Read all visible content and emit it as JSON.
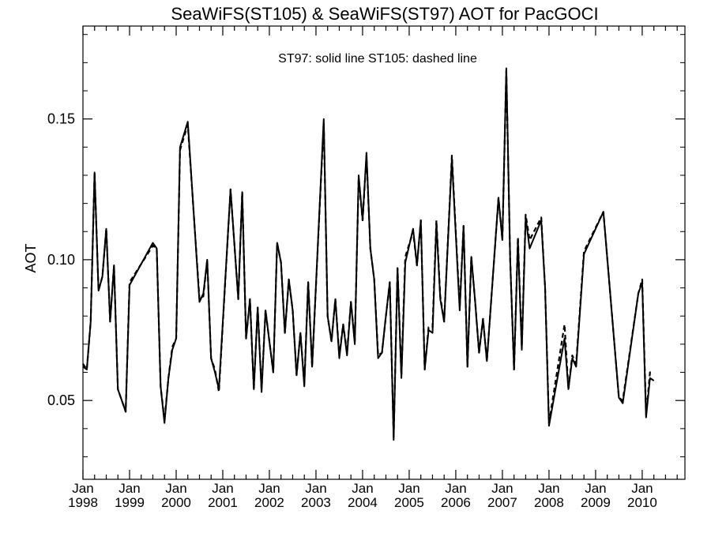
{
  "chart_data": {
    "type": "line",
    "title": "SeaWiFS(ST105) & SeaWiFS(ST97)  AOT for PacGOCI",
    "annotation": "ST97: solid line   ST105: dashed line",
    "xlabel": "",
    "ylabel": "AOT",
    "xlim": [
      "1998-01",
      "2010-12"
    ],
    "ylim": [
      0.022,
      0.183
    ],
    "yticks": [
      0.05,
      0.1,
      0.15
    ],
    "ytick_labels": [
      "0.05",
      "0.10",
      "0.15"
    ],
    "xticks": [
      {
        "month": "1998-01",
        "line1": "Jan",
        "line2": "1998"
      },
      {
        "month": "1999-01",
        "line1": "Jan",
        "line2": "1999"
      },
      {
        "month": "2000-01",
        "line1": "Jan",
        "line2": "2000"
      },
      {
        "month": "2001-01",
        "line1": "Jan",
        "line2": "2001"
      },
      {
        "month": "2002-01",
        "line1": "Jan",
        "line2": "2002"
      },
      {
        "month": "2003-01",
        "line1": "Jan",
        "line2": "2003"
      },
      {
        "month": "2004-01",
        "line1": "Jan",
        "line2": "2004"
      },
      {
        "month": "2005-01",
        "line1": "Jan",
        "line2": "2005"
      },
      {
        "month": "2006-01",
        "line1": "Jan",
        "line2": "2006"
      },
      {
        "month": "2007-01",
        "line1": "Jan",
        "line2": "2007"
      },
      {
        "month": "2008-01",
        "line1": "Jan",
        "line2": "2008"
      },
      {
        "month": "2009-01",
        "line1": "Jan",
        "line2": "2009"
      },
      {
        "month": "2010-01",
        "line1": "Jan",
        "line2": "2010"
      }
    ],
    "grid": false,
    "series": [
      {
        "name": "ST97",
        "style": "solid",
        "color": "#000000",
        "points": [
          [
            "1998-01",
            0.062
          ],
          [
            "1998-02",
            0.061
          ],
          [
            "1998-03",
            0.078
          ],
          [
            "1998-04",
            0.131
          ],
          [
            "1998-05",
            0.089
          ],
          [
            "1998-06",
            0.094
          ],
          [
            "1998-07",
            0.111
          ],
          [
            "1998-08",
            0.078
          ],
          [
            "1998-09",
            0.098
          ],
          [
            "1998-10",
            0.054
          ],
          [
            "1998-11",
            0.05
          ],
          [
            "1998-12",
            0.046
          ],
          [
            "1999-01",
            0.091
          ],
          [
            "1999-07",
            0.106
          ],
          [
            "1999-08",
            0.104
          ],
          [
            "1999-09",
            0.055
          ],
          [
            "1999-10",
            0.042
          ],
          [
            "1999-11",
            0.058
          ],
          [
            "1999-12",
            0.068
          ],
          [
            "2000-01",
            0.072
          ],
          [
            "2000-02",
            0.14
          ],
          [
            "2000-04",
            0.149
          ],
          [
            "2000-07",
            0.085
          ],
          [
            "2000-08",
            0.088
          ],
          [
            "2000-09",
            0.1
          ],
          [
            "2000-10",
            0.065
          ],
          [
            "2000-11",
            0.06
          ],
          [
            "2000-12",
            0.054
          ],
          [
            "2001-03",
            0.125
          ],
          [
            "2001-05",
            0.086
          ],
          [
            "2001-06",
            0.124
          ],
          [
            "2001-07",
            0.072
          ],
          [
            "2001-08",
            0.086
          ],
          [
            "2001-09",
            0.054
          ],
          [
            "2001-10",
            0.083
          ],
          [
            "2001-11",
            0.053
          ],
          [
            "2001-12",
            0.082
          ],
          [
            "2002-01",
            0.071
          ],
          [
            "2002-02",
            0.06
          ],
          [
            "2002-03",
            0.106
          ],
          [
            "2002-04",
            0.099
          ],
          [
            "2002-05",
            0.074
          ],
          [
            "2002-06",
            0.093
          ],
          [
            "2002-07",
            0.082
          ],
          [
            "2002-08",
            0.059
          ],
          [
            "2002-09",
            0.074
          ],
          [
            "2002-10",
            0.055
          ],
          [
            "2002-11",
            0.092
          ],
          [
            "2002-12",
            0.062
          ],
          [
            "2003-03",
            0.15
          ],
          [
            "2003-04",
            0.08
          ],
          [
            "2003-05",
            0.071
          ],
          [
            "2003-06",
            0.086
          ],
          [
            "2003-07",
            0.065
          ],
          [
            "2003-08",
            0.077
          ],
          [
            "2003-09",
            0.066
          ],
          [
            "2003-10",
            0.085
          ],
          [
            "2003-11",
            0.07
          ],
          [
            "2003-12",
            0.13
          ],
          [
            "2004-01",
            0.114
          ],
          [
            "2004-02",
            0.138
          ],
          [
            "2004-03",
            0.104
          ],
          [
            "2004-04",
            0.093
          ],
          [
            "2004-05",
            0.065
          ],
          [
            "2004-06",
            0.067
          ],
          [
            "2004-07",
            0.08
          ],
          [
            "2004-08",
            0.092
          ],
          [
            "2004-09",
            0.036
          ],
          [
            "2004-10",
            0.097
          ],
          [
            "2004-11",
            0.058
          ],
          [
            "2004-12",
            0.099
          ],
          [
            "2005-02",
            0.111
          ],
          [
            "2005-03",
            0.098
          ],
          [
            "2005-04",
            0.114
          ],
          [
            "2005-05",
            0.061
          ],
          [
            "2005-06",
            0.075
          ],
          [
            "2005-07",
            0.074
          ],
          [
            "2005-08",
            0.113
          ],
          [
            "2005-09",
            0.086
          ],
          [
            "2005-10",
            0.078
          ],
          [
            "2005-12",
            0.136
          ],
          [
            "2006-02",
            0.082
          ],
          [
            "2006-03",
            0.112
          ],
          [
            "2006-04",
            0.062
          ],
          [
            "2006-05",
            0.101
          ],
          [
            "2006-06",
            0.085
          ],
          [
            "2006-07",
            0.067
          ],
          [
            "2006-08",
            0.079
          ],
          [
            "2006-09",
            0.064
          ],
          [
            "2006-12",
            0.122
          ],
          [
            "2007-01",
            0.107
          ],
          [
            "2007-02",
            0.168
          ],
          [
            "2007-03",
            0.1
          ],
          [
            "2007-04",
            0.061
          ],
          [
            "2007-05",
            0.107
          ],
          [
            "2007-06",
            0.068
          ],
          [
            "2007-07",
            0.115
          ],
          [
            "2007-08",
            0.104
          ],
          [
            "2007-11",
            0.114
          ],
          [
            "2007-12",
            0.09
          ],
          [
            "2008-01",
            0.041
          ],
          [
            "2008-05",
            0.072
          ],
          [
            "2008-06",
            0.054
          ],
          [
            "2008-07",
            0.065
          ],
          [
            "2008-08",
            0.062
          ],
          [
            "2008-10",
            0.102
          ],
          [
            "2009-03",
            0.117
          ],
          [
            "2009-07",
            0.051
          ],
          [
            "2009-08",
            0.049
          ],
          [
            "2009-12",
            0.088
          ],
          [
            "2010-01",
            0.092
          ],
          [
            "2010-02",
            0.044
          ],
          [
            "2010-03",
            0.058
          ],
          [
            "2010-04",
            0.057
          ]
        ]
      },
      {
        "name": "ST105",
        "style": "dashed",
        "color": "#000000",
        "points": [
          [
            "1998-01",
            0.063
          ],
          [
            "1998-02",
            0.061
          ],
          [
            "1998-03",
            0.078
          ],
          [
            "1998-04",
            0.131
          ],
          [
            "1998-05",
            0.089
          ],
          [
            "1998-06",
            0.094
          ],
          [
            "1998-07",
            0.111
          ],
          [
            "1998-08",
            0.078
          ],
          [
            "1998-09",
            0.098
          ],
          [
            "1998-10",
            0.054
          ],
          [
            "1998-11",
            0.05
          ],
          [
            "1998-12",
            0.046
          ],
          [
            "1999-01",
            0.092
          ],
          [
            "1999-07",
            0.105
          ],
          [
            "1999-08",
            0.104
          ],
          [
            "1999-09",
            0.055
          ],
          [
            "1999-10",
            0.043
          ],
          [
            "1999-11",
            0.058
          ],
          [
            "1999-12",
            0.069
          ],
          [
            "2000-01",
            0.072
          ],
          [
            "2000-02",
            0.139
          ],
          [
            "2000-04",
            0.148
          ],
          [
            "2000-07",
            0.086
          ],
          [
            "2000-08",
            0.087
          ],
          [
            "2000-09",
            0.1
          ],
          [
            "2000-10",
            0.065
          ],
          [
            "2000-11",
            0.061
          ],
          [
            "2000-12",
            0.053
          ],
          [
            "2001-03",
            0.125
          ],
          [
            "2001-05",
            0.086
          ],
          [
            "2001-06",
            0.124
          ],
          [
            "2001-07",
            0.072
          ],
          [
            "2001-08",
            0.086
          ],
          [
            "2001-09",
            0.054
          ],
          [
            "2001-10",
            0.083
          ],
          [
            "2001-11",
            0.054
          ],
          [
            "2001-12",
            0.082
          ],
          [
            "2002-01",
            0.071
          ],
          [
            "2002-02",
            0.06
          ],
          [
            "2002-03",
            0.106
          ],
          [
            "2002-04",
            0.099
          ],
          [
            "2002-05",
            0.074
          ],
          [
            "2002-06",
            0.093
          ],
          [
            "2002-07",
            0.082
          ],
          [
            "2002-08",
            0.059
          ],
          [
            "2002-09",
            0.074
          ],
          [
            "2002-10",
            0.056
          ],
          [
            "2002-11",
            0.092
          ],
          [
            "2002-12",
            0.062
          ],
          [
            "2003-03",
            0.149
          ],
          [
            "2003-04",
            0.08
          ],
          [
            "2003-05",
            0.071
          ],
          [
            "2003-06",
            0.086
          ],
          [
            "2003-07",
            0.066
          ],
          [
            "2003-08",
            0.077
          ],
          [
            "2003-09",
            0.067
          ],
          [
            "2003-10",
            0.085
          ],
          [
            "2003-11",
            0.071
          ],
          [
            "2003-12",
            0.129
          ],
          [
            "2004-01",
            0.114
          ],
          [
            "2004-02",
            0.137
          ],
          [
            "2004-03",
            0.104
          ],
          [
            "2004-04",
            0.093
          ],
          [
            "2004-05",
            0.066
          ],
          [
            "2004-06",
            0.067
          ],
          [
            "2004-07",
            0.08
          ],
          [
            "2004-08",
            0.092
          ],
          [
            "2004-09",
            0.037
          ],
          [
            "2004-10",
            0.097
          ],
          [
            "2004-11",
            0.059
          ],
          [
            "2004-12",
            0.101
          ],
          [
            "2005-02",
            0.11
          ],
          [
            "2005-03",
            0.098
          ],
          [
            "2005-04",
            0.114
          ],
          [
            "2005-05",
            0.061
          ],
          [
            "2005-06",
            0.076
          ],
          [
            "2005-07",
            0.076
          ],
          [
            "2005-08",
            0.114
          ],
          [
            "2005-09",
            0.087
          ],
          [
            "2005-10",
            0.078
          ],
          [
            "2005-12",
            0.137
          ],
          [
            "2006-02",
            0.083
          ],
          [
            "2006-03",
            0.112
          ],
          [
            "2006-04",
            0.062
          ],
          [
            "2006-05",
            0.101
          ],
          [
            "2006-06",
            0.085
          ],
          [
            "2006-07",
            0.067
          ],
          [
            "2006-08",
            0.079
          ],
          [
            "2006-09",
            0.064
          ],
          [
            "2006-12",
            0.122
          ],
          [
            "2007-01",
            0.107
          ],
          [
            "2007-02",
            0.167
          ],
          [
            "2007-03",
            0.1
          ],
          [
            "2007-04",
            0.061
          ],
          [
            "2007-05",
            0.108
          ],
          [
            "2007-06",
            0.069
          ],
          [
            "2007-07",
            0.116
          ],
          [
            "2007-08",
            0.107
          ],
          [
            "2007-11",
            0.115
          ],
          [
            "2007-12",
            0.09
          ],
          [
            "2008-01",
            0.042
          ],
          [
            "2008-05",
            0.077
          ],
          [
            "2008-06",
            0.054
          ],
          [
            "2008-07",
            0.066
          ],
          [
            "2008-08",
            0.063
          ],
          [
            "2008-10",
            0.103
          ],
          [
            "2009-03",
            0.117
          ],
          [
            "2009-07",
            0.051
          ],
          [
            "2009-08",
            0.05
          ],
          [
            "2009-12",
            0.088
          ],
          [
            "2010-01",
            0.093
          ],
          [
            "2010-02",
            0.045
          ],
          [
            "2010-03",
            0.06
          ],
          [
            "2010-04",
            0.06
          ]
        ]
      }
    ]
  }
}
